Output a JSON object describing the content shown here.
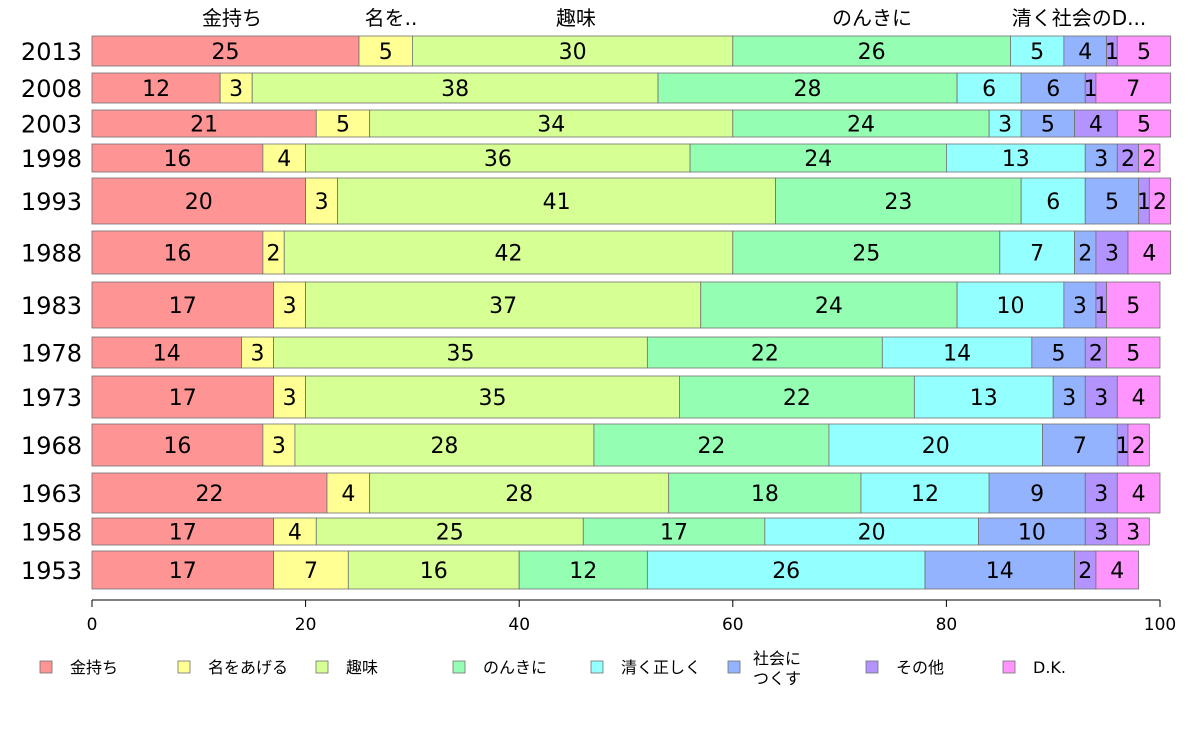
{
  "chart_data": {
    "type": "bar",
    "orientation": "horizontal",
    "stacked": true,
    "categories": [
      "2013",
      "2008",
      "2003",
      "1998",
      "1993",
      "1988",
      "1983",
      "1978",
      "1973",
      "1968",
      "1963",
      "1958",
      "1953"
    ],
    "series": [
      {
        "name": "金持ち",
        "values": [
          25,
          12,
          21,
          16,
          20,
          16,
          17,
          14,
          17,
          16,
          22,
          17,
          17
        ]
      },
      {
        "name": "名をあげる",
        "values": [
          5,
          3,
          5,
          4,
          3,
          2,
          3,
          3,
          3,
          3,
          4,
          4,
          7
        ]
      },
      {
        "name": "趣味",
        "values": [
          30,
          38,
          34,
          36,
          41,
          42,
          37,
          35,
          35,
          28,
          28,
          25,
          16
        ]
      },
      {
        "name": "のんきに",
        "values": [
          26,
          28,
          24,
          24,
          23,
          25,
          24,
          22,
          22,
          22,
          18,
          17,
          12
        ]
      },
      {
        "name": "清く正しく",
        "values": [
          5,
          6,
          3,
          13,
          6,
          7,
          10,
          14,
          13,
          20,
          12,
          20,
          26
        ]
      },
      {
        "name": "社会に\nつくす",
        "values": [
          4,
          6,
          5,
          3,
          5,
          2,
          3,
          5,
          3,
          7,
          9,
          10,
          14
        ]
      },
      {
        "name": "その他",
        "values": [
          1,
          1,
          4,
          2,
          1,
          3,
          1,
          2,
          3,
          1,
          3,
          3,
          2
        ]
      },
      {
        "name": "D.K.",
        "values": [
          5,
          7,
          5,
          2,
          2,
          4,
          5,
          5,
          4,
          2,
          4,
          3,
          4
        ]
      }
    ],
    "top_labels": [
      "金持ち",
      "名を..",
      "趣味",
      "のんきに",
      "清く社会のD..."
    ],
    "xlim": [
      0,
      100
    ],
    "xticks": [
      0,
      20,
      40,
      60,
      80,
      100
    ],
    "legend_position": "bottom",
    "colors": [
      "#ff9494",
      "#ffff94",
      "#d6ff94",
      "#94ffb3",
      "#94ffff",
      "#94b3ff",
      "#b394ff",
      "#ff94ff"
    ]
  }
}
